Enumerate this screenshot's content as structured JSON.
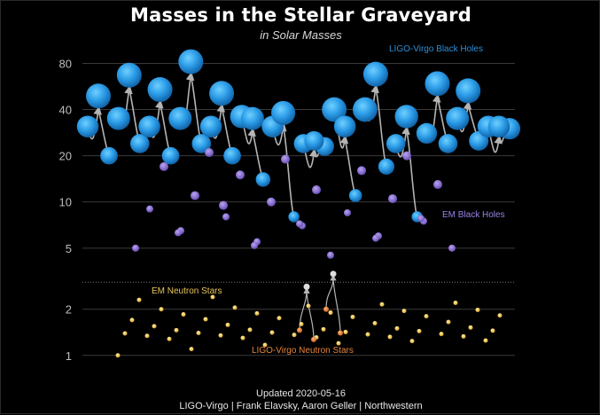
{
  "chart_data": {
    "type": "scatter",
    "title": "Masses in the Stellar Graveyard",
    "subtitle": "in Solar Masses",
    "yscale": "log",
    "ylim": [
      0.85,
      120
    ],
    "yticks": [
      1,
      2,
      5,
      10,
      20,
      40,
      80
    ],
    "yticklabels": [
      "1",
      "2",
      "5",
      "10",
      "20",
      "40",
      "80"
    ],
    "grid": true,
    "footer": [
      "Updated 2020-05-16",
      "LIGO-Virgo | Frank Elavsky, Aaron Geller | Northwestern"
    ],
    "colors": {
      "ligo_bh": "#2e9be6",
      "em_bh": "#8d6fd6",
      "em_ns": "#f0c84a",
      "ligo_ns": "#ea7a2c",
      "unknown": "#b9b9b9"
    },
    "series": [
      {
        "name": "LIGO-Virgo Black Holes",
        "mergers": [
          {
            "x": 1,
            "m1": 31,
            "m2": 20,
            "final": 49
          },
          {
            "x": 2,
            "m1": 35,
            "m2": 24,
            "final": 67
          },
          {
            "x": 3,
            "m1": 31,
            "m2": 20,
            "final": 54
          },
          {
            "x": 4,
            "m1": 35,
            "m2": 24,
            "final": 82
          },
          {
            "x": 5,
            "m1": 31,
            "m2": 20,
            "final": 51
          },
          {
            "x": 6,
            "m1": 36,
            "m2": 14,
            "final": 35
          },
          {
            "x": 7,
            "m1": 31,
            "m2": 8,
            "final": 38
          },
          {
            "x": 8,
            "m1": 24,
            "m2": 23,
            "final": 25
          },
          {
            "x": 9,
            "m1": 40,
            "m2": 11,
            "final": 31
          },
          {
            "x": 10,
            "m1": 40,
            "m2": 17,
            "final": 68
          },
          {
            "x": 11,
            "m1": 24,
            "m2": 8,
            "final": 36
          },
          {
            "x": 12,
            "m1": 28,
            "m2": 24,
            "final": 59
          },
          {
            "x": 13,
            "m1": 35,
            "m2": 25,
            "final": 53
          },
          {
            "x": 14,
            "m1": 31,
            "m2": 30,
            "final": 31
          }
        ]
      },
      {
        "name": "EM Black Holes",
        "masses": [
          5.0,
          5.5,
          6.0,
          6.5,
          7.0,
          7.5,
          8.0,
          8.5,
          9.0,
          10.0,
          10.5,
          11.0,
          12.0,
          13.0,
          15.0,
          16.0,
          17.0,
          19.0,
          20.0,
          21.0,
          4.5,
          5.0,
          5.2,
          5.8,
          6.3,
          7.2,
          7.8,
          9.5
        ]
      },
      {
        "name": "EM Neutron Stars",
        "masses": [
          1.0,
          1.1,
          1.17,
          1.2,
          1.24,
          1.25,
          1.28,
          1.3,
          1.31,
          1.32,
          1.33,
          1.34,
          1.35,
          1.36,
          1.37,
          1.38,
          1.39,
          1.4,
          1.41,
          1.42,
          1.44,
          1.45,
          1.46,
          1.47,
          1.48,
          1.5,
          1.52,
          1.55,
          1.58,
          1.6,
          1.62,
          1.65,
          1.7,
          1.72,
          1.75,
          1.78,
          1.8,
          1.82,
          1.85,
          1.88,
          1.9,
          1.95,
          1.98,
          2.0,
          2.05,
          2.1,
          2.15,
          2.2,
          2.3,
          2.4
        ]
      },
      {
        "name": "LIGO-Virgo Neutron Stars",
        "mergers": [
          {
            "m1": 1.46,
            "m2": 1.27,
            "final": 2.8
          },
          {
            "m1": 2.0,
            "m2": 1.4,
            "final": 3.4
          }
        ]
      }
    ]
  }
}
